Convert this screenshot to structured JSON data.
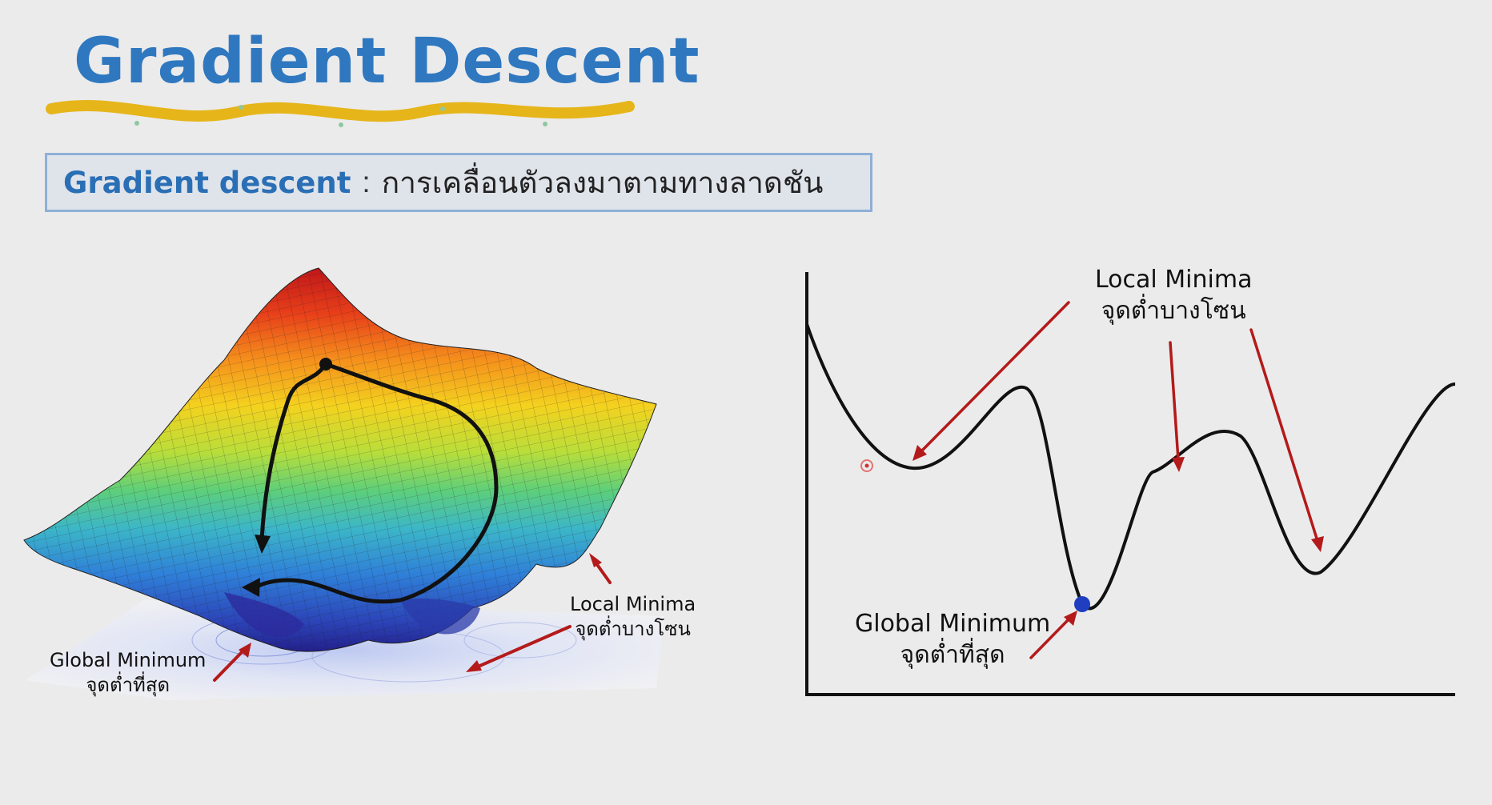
{
  "slide": {
    "title": "Gradient Descent",
    "definition": {
      "term": "Gradient descent",
      "separator": ":",
      "meaning": "การเคลื่อนตัวลงมาตามทางลาดชัน"
    }
  },
  "surface_figure": {
    "local_minima": {
      "en": "Local Minima",
      "th": "จุดต่ำบางโซน"
    },
    "global_minimum": {
      "en": "Global Minimum",
      "th": "จุดต่ำที่สุด"
    }
  },
  "curve_figure": {
    "local_minima": {
      "en": "Local Minima",
      "th": "จุดต่ำบางโซน"
    },
    "global_minimum": {
      "en": "Global Minimum",
      "th": "จุดต่ำที่สุด"
    }
  },
  "colors": {
    "title_blue": "#2f78c0",
    "underline_gold": "#e6b51a",
    "arrow_red": "#b41a1a",
    "global_point_blue": "#1f3fc0",
    "curve_black": "#111111"
  }
}
